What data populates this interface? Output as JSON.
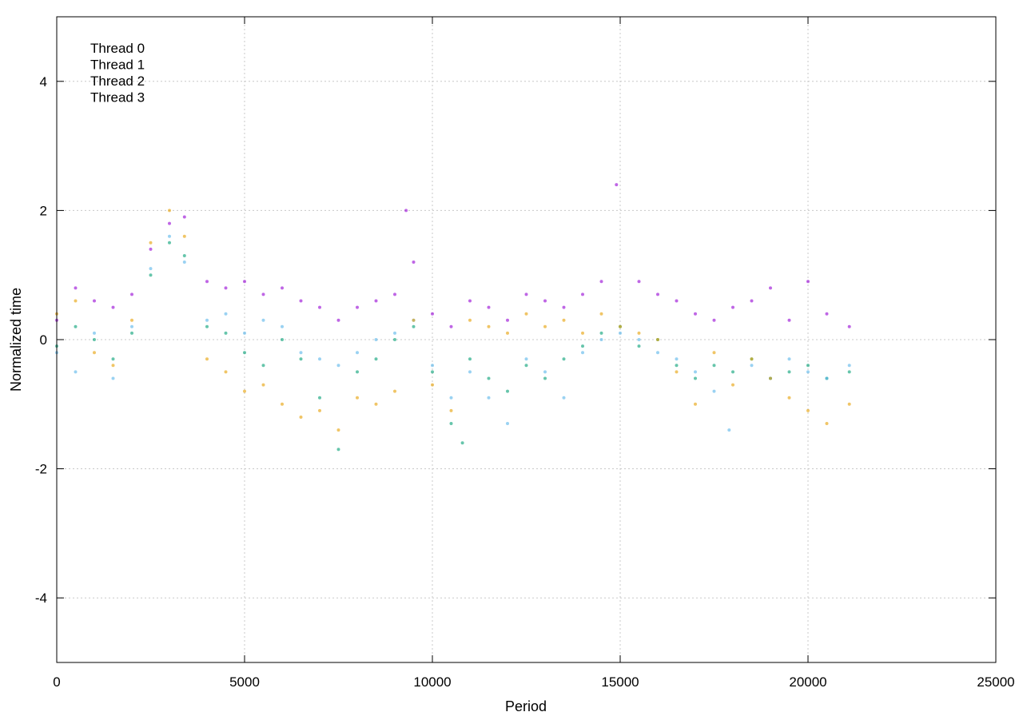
{
  "chart_data": {
    "type": "scatter",
    "title": "",
    "xlabel": "Period",
    "ylabel": "Normalized time",
    "xlim": [
      0,
      25000
    ],
    "ylim": [
      -5,
      5
    ],
    "xticks": [
      0,
      5000,
      10000,
      15000,
      20000,
      25000
    ],
    "xtick_labels": [
      "0",
      "5000",
      "10000",
      "15000",
      "20000",
      "25000"
    ],
    "yticks": [
      -4,
      -2,
      0,
      2,
      4
    ],
    "ytick_labels": [
      "-4",
      "-2",
      "0",
      "2",
      "4"
    ],
    "grid": true,
    "legend_position": "top-left",
    "series": [
      {
        "name": "Thread 0",
        "color": "#9400d3",
        "points": [
          [
            0,
            0.3
          ],
          [
            500,
            0.8
          ],
          [
            1000,
            0.6
          ],
          [
            1500,
            0.5
          ],
          [
            2000,
            0.7
          ],
          [
            2500,
            1.4
          ],
          [
            3000,
            1.8
          ],
          [
            3400,
            1.9
          ],
          [
            4000,
            0.9
          ],
          [
            4500,
            0.8
          ],
          [
            5000,
            0.9
          ],
          [
            5500,
            0.7
          ],
          [
            6000,
            0.8
          ],
          [
            6500,
            0.6
          ],
          [
            7000,
            0.5
          ],
          [
            7500,
            0.3
          ],
          [
            8000,
            0.5
          ],
          [
            8500,
            0.6
          ],
          [
            9000,
            0.7
          ],
          [
            9300,
            2.0
          ],
          [
            9500,
            1.2
          ],
          [
            10000,
            0.4
          ],
          [
            10500,
            0.2
          ],
          [
            11000,
            0.6
          ],
          [
            11500,
            0.5
          ],
          [
            12000,
            0.3
          ],
          [
            12500,
            0.7
          ],
          [
            13000,
            0.6
          ],
          [
            13500,
            0.5
          ],
          [
            14000,
            0.7
          ],
          [
            14500,
            0.9
          ],
          [
            14900,
            2.4
          ],
          [
            15500,
            0.9
          ],
          [
            16000,
            0.7
          ],
          [
            16500,
            0.6
          ],
          [
            17000,
            0.4
          ],
          [
            17500,
            0.3
          ],
          [
            18000,
            0.5
          ],
          [
            18500,
            0.6
          ],
          [
            19000,
            0.8
          ],
          [
            19500,
            0.3
          ],
          [
            20000,
            0.9
          ],
          [
            20500,
            0.4
          ],
          [
            21100,
            0.2
          ]
        ]
      },
      {
        "name": "Thread 1",
        "color": "#009e73",
        "points": [
          [
            0,
            -0.1
          ],
          [
            500,
            0.2
          ],
          [
            1000,
            0.0
          ],
          [
            1500,
            -0.3
          ],
          [
            2000,
            0.1
          ],
          [
            2500,
            1.0
          ],
          [
            3000,
            1.5
          ],
          [
            3400,
            1.3
          ],
          [
            4000,
            0.2
          ],
          [
            4500,
            0.1
          ],
          [
            5000,
            -0.2
          ],
          [
            5500,
            -0.4
          ],
          [
            6000,
            0.0
          ],
          [
            6500,
            -0.3
          ],
          [
            7000,
            -0.9
          ],
          [
            7500,
            -1.7
          ],
          [
            8000,
            -0.5
          ],
          [
            8500,
            -0.3
          ],
          [
            9000,
            0.0
          ],
          [
            9500,
            0.2
          ],
          [
            10000,
            -0.5
          ],
          [
            10500,
            -1.3
          ],
          [
            10800,
            -1.6
          ],
          [
            11000,
            -0.3
          ],
          [
            11500,
            -0.6
          ],
          [
            12000,
            -0.8
          ],
          [
            12500,
            -0.4
          ],
          [
            13000,
            -0.6
          ],
          [
            13500,
            -0.3
          ],
          [
            14000,
            -0.1
          ],
          [
            14500,
            0.1
          ],
          [
            15000,
            0.2
          ],
          [
            15500,
            -0.1
          ],
          [
            16000,
            0.0
          ],
          [
            16500,
            -0.4
          ],
          [
            17000,
            -0.6
          ],
          [
            17500,
            -0.4
          ],
          [
            18000,
            -0.5
          ],
          [
            18500,
            -0.3
          ],
          [
            19000,
            -0.6
          ],
          [
            19500,
            -0.5
          ],
          [
            20000,
            -0.4
          ],
          [
            20500,
            -0.6
          ],
          [
            21100,
            -0.5
          ]
        ]
      },
      {
        "name": "Thread 2",
        "color": "#56b4e9",
        "points": [
          [
            0,
            -0.2
          ],
          [
            500,
            -0.5
          ],
          [
            1000,
            0.1
          ],
          [
            1500,
            -0.6
          ],
          [
            2000,
            0.2
          ],
          [
            2500,
            1.1
          ],
          [
            3000,
            1.6
          ],
          [
            3400,
            1.2
          ],
          [
            4000,
            0.3
          ],
          [
            4500,
            0.4
          ],
          [
            5000,
            0.1
          ],
          [
            5500,
            0.3
          ],
          [
            6000,
            0.2
          ],
          [
            6500,
            -0.2
          ],
          [
            7000,
            -0.3
          ],
          [
            7500,
            -0.4
          ],
          [
            8000,
            -0.2
          ],
          [
            8500,
            0.0
          ],
          [
            9000,
            0.1
          ],
          [
            9500,
            0.3
          ],
          [
            10000,
            -0.4
          ],
          [
            10500,
            -0.9
          ],
          [
            11000,
            -0.5
          ],
          [
            11500,
            -0.9
          ],
          [
            12000,
            -1.3
          ],
          [
            12500,
            -0.3
          ],
          [
            13000,
            -0.5
          ],
          [
            13500,
            -0.9
          ],
          [
            14000,
            -0.2
          ],
          [
            14500,
            0.0
          ],
          [
            15000,
            0.1
          ],
          [
            15500,
            0.0
          ],
          [
            16000,
            -0.2
          ],
          [
            16500,
            -0.3
          ],
          [
            17000,
            -0.5
          ],
          [
            17500,
            -0.8
          ],
          [
            17900,
            -1.4
          ],
          [
            18500,
            -0.4
          ],
          [
            19000,
            -0.6
          ],
          [
            19500,
            -0.3
          ],
          [
            20000,
            -0.5
          ],
          [
            20500,
            -0.6
          ],
          [
            21100,
            -0.4
          ]
        ]
      },
      {
        "name": "Thread 3",
        "color": "#e69f00",
        "points": [
          [
            0,
            0.4
          ],
          [
            500,
            0.6
          ],
          [
            1000,
            -0.2
          ],
          [
            1500,
            -0.4
          ],
          [
            2000,
            0.3
          ],
          [
            2500,
            1.5
          ],
          [
            3000,
            2.0
          ],
          [
            3400,
            1.6
          ],
          [
            4000,
            -0.3
          ],
          [
            4500,
            -0.5
          ],
          [
            5000,
            -0.8
          ],
          [
            5500,
            -0.7
          ],
          [
            6000,
            -1.0
          ],
          [
            6500,
            -1.2
          ],
          [
            7000,
            -1.1
          ],
          [
            7500,
            -1.4
          ],
          [
            8000,
            -0.9
          ],
          [
            8500,
            -1.0
          ],
          [
            9000,
            -0.8
          ],
          [
            9500,
            0.3
          ],
          [
            10000,
            -0.7
          ],
          [
            10500,
            -1.1
          ],
          [
            11000,
            0.3
          ],
          [
            11500,
            0.2
          ],
          [
            12000,
            0.1
          ],
          [
            12500,
            0.4
          ],
          [
            13000,
            0.2
          ],
          [
            13500,
            0.3
          ],
          [
            14000,
            0.1
          ],
          [
            14500,
            0.4
          ],
          [
            15000,
            0.2
          ],
          [
            15500,
            0.1
          ],
          [
            16000,
            0.0
          ],
          [
            16500,
            -0.5
          ],
          [
            17000,
            -1.0
          ],
          [
            17500,
            -0.2
          ],
          [
            18000,
            -0.7
          ],
          [
            18500,
            -0.3
          ],
          [
            19000,
            -0.6
          ],
          [
            19500,
            -0.9
          ],
          [
            20000,
            -1.1
          ],
          [
            20500,
            -1.3
          ],
          [
            21100,
            -1.0
          ]
        ]
      }
    ]
  }
}
